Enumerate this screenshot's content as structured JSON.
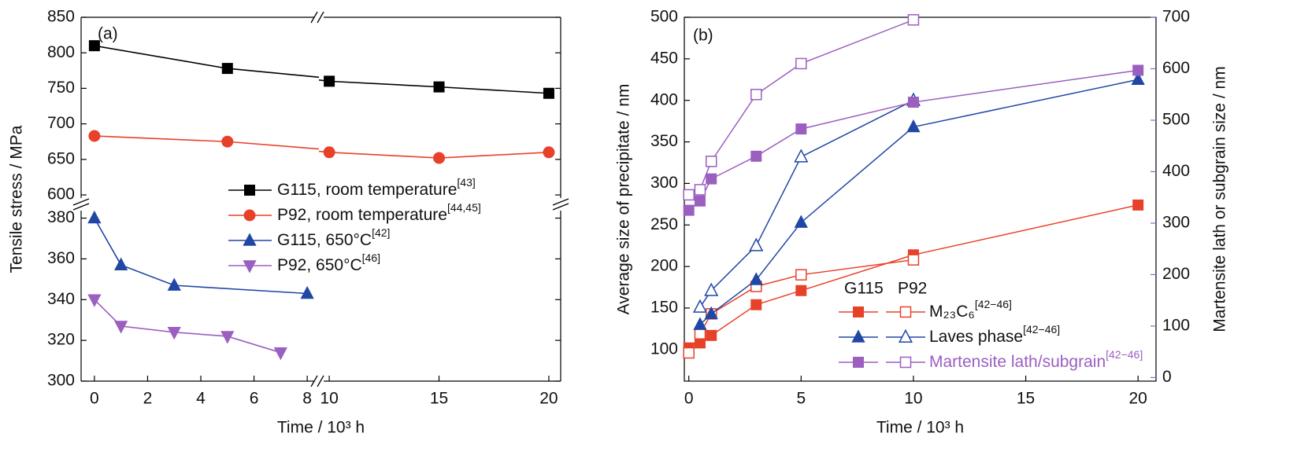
{
  "chart_data": [
    {
      "type": "line",
      "panel_label": "(a)",
      "xlabel": "Time / 10³ h",
      "ylabel": "Tensile stress / MPa",
      "x_segments": [
        {
          "xlim": [
            -0.5,
            8.44
          ],
          "xticks": [
            0,
            2,
            4,
            6,
            8
          ]
        },
        {
          "xlim": [
            9.53,
            20.54
          ],
          "xticks": [
            10,
            15,
            20
          ]
        }
      ],
      "y_segments": [
        {
          "ylim": [
            300,
            386
          ],
          "yticks": [
            300,
            320,
            340,
            360,
            380
          ]
        },
        {
          "ylim": [
            589,
            850
          ],
          "yticks": [
            600,
            650,
            700,
            750,
            800,
            850
          ]
        }
      ],
      "series": [
        {
          "name": "G115, room temperature",
          "ref": "[43]",
          "color": "#000000",
          "marker": "square",
          "x": [
            0,
            5,
            10,
            15,
            20
          ],
          "values": [
            810,
            778,
            760,
            752,
            743
          ]
        },
        {
          "name": "P92, room temperature",
          "ref": "[44,45]",
          "color": "#e8412a",
          "marker": "circle",
          "x": [
            0,
            5,
            10,
            15,
            20
          ],
          "values": [
            683,
            675,
            660,
            652,
            660
          ]
        },
        {
          "name": "G115, 650°C",
          "ref": "[42]",
          "color": "#2147a5",
          "marker": "triangle-up",
          "x": [
            0,
            1,
            3,
            8
          ],
          "values": [
            380,
            357,
            347,
            343
          ]
        },
        {
          "name": "P92, 650°C",
          "ref": "[46]",
          "color": "#9b5fc0",
          "marker": "triangle-down",
          "x": [
            0,
            1,
            3,
            5,
            7
          ],
          "values": [
            340,
            327,
            324,
            322,
            314
          ]
        }
      ]
    },
    {
      "type": "line",
      "panel_label": "(b)",
      "xlabel": "Time / 10³ h",
      "ylabel": "Average size of precipitate / nm",
      "y2label": "Martensite lath or subgrain size / nm",
      "xlim": [
        -0.2,
        20.8
      ],
      "xticks": [
        0,
        5,
        10,
        15,
        20
      ],
      "ylim": [
        62,
        500
      ],
      "yticks": [
        100,
        150,
        200,
        250,
        300,
        350,
        400,
        450,
        500
      ],
      "y2lim": [
        -7,
        700
      ],
      "y2ticks": [
        0,
        100,
        200,
        300,
        400,
        500,
        600,
        700
      ],
      "y2color": "#9b5fc0",
      "materials": [
        "G115",
        "P92"
      ],
      "series": [
        {
          "name": "M₂₃C₆",
          "ref": "[42−46]",
          "color": "#e8412a",
          "marker": "square",
          "axis": "y",
          "G115": {
            "x": [
              0,
              0.5,
              1,
              3,
              5,
              10,
              20
            ],
            "values": [
              102,
              108,
              117,
              154,
              171,
              214,
              274
            ]
          },
          "P92": {
            "x": [
              0,
              0.5,
              1,
              3,
              5,
              10
            ],
            "values": [
              96,
              119,
              143,
              176,
              190,
              208
            ]
          }
        },
        {
          "name": "Laves phase",
          "ref": "[42−46]",
          "color": "#2147a5",
          "marker": "triangle-up",
          "axis": "y",
          "G115": {
            "x": [
              0.5,
              1,
              3,
              5,
              10,
              20
            ],
            "values": [
              130,
              143,
              184,
              253,
              368,
              425
            ]
          },
          "P92": {
            "x": [
              0.5,
              1,
              3,
              5,
              10
            ],
            "values": [
              151,
              171,
              225,
              332,
              400
            ]
          }
        },
        {
          "name": "Martensite lath/subgrain",
          "ref": "[42−46]",
          "color": "#9b5fc0",
          "marker": "square",
          "axis": "y2",
          "G115": {
            "x": [
              0,
              0.5,
              1,
              3,
              5,
              10,
              20
            ],
            "values": [
              325,
              343,
              386,
              430,
              483,
              535,
              597
            ]
          },
          "P92": {
            "x": [
              0,
              0.5,
              1,
              3,
              5,
              10
            ],
            "values": [
              355,
              365,
              420,
              550,
              610,
              695
            ]
          }
        }
      ]
    }
  ]
}
